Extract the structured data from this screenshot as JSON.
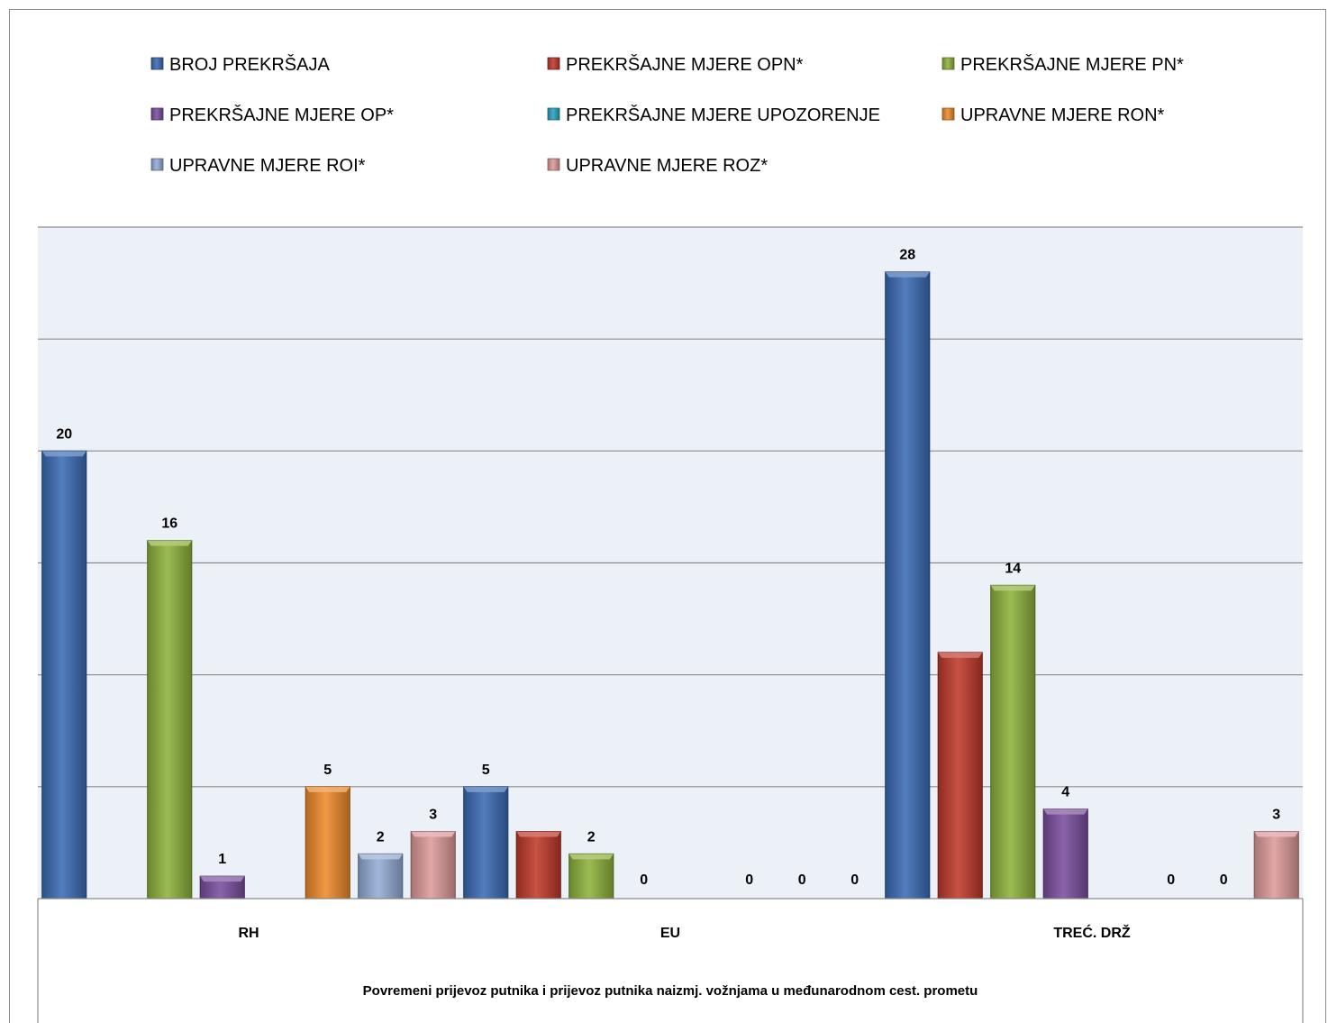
{
  "chart_data": {
    "type": "bar",
    "title": "",
    "xlabel": "Povremeni prijevoz putnika i prijevoz putnika naizmj. vožnjama u međunarodnom cest. prometu",
    "ylabel": "",
    "ylim": [
      0,
      30
    ],
    "grid": true,
    "legend_position": "top",
    "categories": [
      "RH",
      "EU",
      "TREĆ. DRŽ"
    ],
    "series": [
      {
        "name": "BROJ PREKRŠAJA",
        "color": "#3b6bb5",
        "values": [
          20,
          5,
          28
        ],
        "labels": [
          "20",
          "5",
          "28"
        ]
      },
      {
        "name": "PREKRŠAJNE MJERE OPN*",
        "color": "#c0392b",
        "values": [
          0,
          3,
          11
        ],
        "labels": [
          "",
          "",
          ""
        ]
      },
      {
        "name": "PREKRŠAJNE MJERE PN*",
        "color": "#8db33a",
        "values": [
          16,
          2,
          14
        ],
        "labels": [
          "16",
          "2",
          "14"
        ]
      },
      {
        "name": "PREKRŠAJNE MJERE OP*",
        "color": "#7a4f9e",
        "values": [
          1,
          0,
          4
        ],
        "labels": [
          "1",
          "0",
          "4"
        ]
      },
      {
        "name": "PREKRŠAJNE MJERE UPOZORENJE",
        "color": "#2aa3be",
        "values": [
          0,
          0,
          0
        ],
        "labels": [
          "",
          "",
          ""
        ]
      },
      {
        "name": "UPRAVNE MJERE RON*",
        "color": "#ee8a2a",
        "values": [
          5,
          0,
          0
        ],
        "labels": [
          "5",
          "0",
          "0"
        ]
      },
      {
        "name": "UPRAVNE MJERE ROI*",
        "color": "#93acd6",
        "values": [
          2,
          0,
          0
        ],
        "labels": [
          "2",
          "0",
          "0"
        ]
      },
      {
        "name": "UPRAVNE MJERE ROZ*",
        "color": "#de9a9a",
        "values": [
          3,
          0,
          3
        ],
        "labels": [
          "3",
          "0",
          "3"
        ]
      }
    ]
  }
}
